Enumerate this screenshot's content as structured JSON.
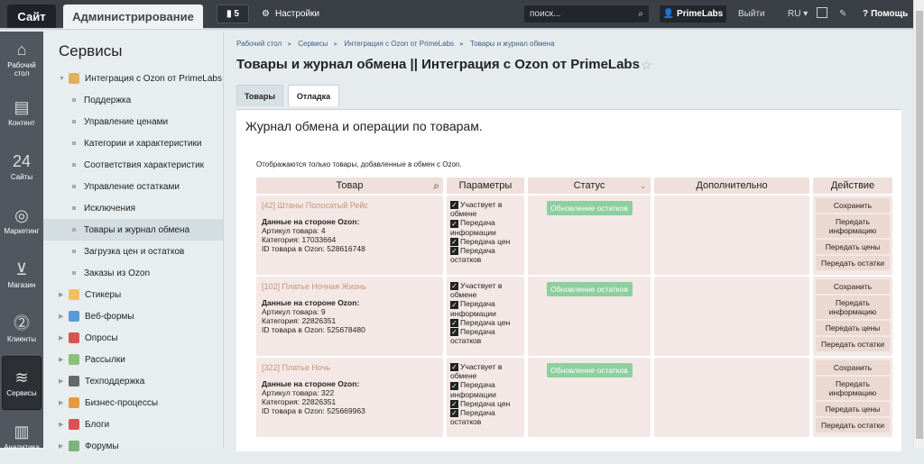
{
  "topbar": {
    "site": "Сайт",
    "admin": "Администрирование",
    "notifications": "5",
    "settings": "Настройки",
    "search_placeholder": "поиск...",
    "user": "PrimeLabs",
    "logout": "Выйти",
    "lang": "RU",
    "help": "Помощь"
  },
  "iconbar": [
    {
      "label": "Рабочий стол",
      "icon": "home-icon",
      "g": "⌂"
    },
    {
      "label": "Контент",
      "icon": "document-icon",
      "g": "▤"
    },
    {
      "label": "Сайты",
      "icon": "calendar-icon",
      "g": "24"
    },
    {
      "label": "Маркетинг",
      "icon": "target-icon",
      "g": "◎"
    },
    {
      "label": "Магазин",
      "icon": "basket-icon",
      "g": "⊻"
    },
    {
      "label": "Клиенты",
      "icon": "clients-icon",
      "g": "⓶"
    },
    {
      "label": "Сервисы",
      "icon": "layers-icon",
      "g": "≋",
      "active": true
    },
    {
      "label": "Аналитика",
      "icon": "chart-icon",
      "g": "▥"
    }
  ],
  "sidebar": {
    "title": "Сервисы",
    "items": [
      {
        "label": "Интеграция с Ozon от PrimeLabs",
        "type": "top",
        "open": true,
        "color": "#e0b060"
      },
      {
        "label": "Поддержка",
        "type": "sub"
      },
      {
        "label": "Управление ценами",
        "type": "sub"
      },
      {
        "label": "Категории и характеристики",
        "type": "sub"
      },
      {
        "label": "Соответствия характеристик",
        "type": "sub"
      },
      {
        "label": "Управление остатками",
        "type": "sub"
      },
      {
        "label": "Исключения",
        "type": "sub"
      },
      {
        "label": "Товары и журнал обмена",
        "type": "sub",
        "selected": true
      },
      {
        "label": "Загрузка цен и остатков",
        "type": "sub"
      },
      {
        "label": "Заказы из Ozon",
        "type": "sub"
      },
      {
        "label": "Стикеры",
        "type": "top",
        "color": "#f0c060"
      },
      {
        "label": "Веб-формы",
        "type": "top",
        "color": "#5b9bd5"
      },
      {
        "label": "Опросы",
        "type": "top",
        "color": "#d9534f"
      },
      {
        "label": "Рассылки",
        "type": "top",
        "color": "#8bc07a"
      },
      {
        "label": "Техподдержка",
        "type": "top",
        "color": "#666"
      },
      {
        "label": "Бизнес-процессы",
        "type": "top",
        "color": "#e89a3c"
      },
      {
        "label": "Блоги",
        "type": "top",
        "color": "#d9534f"
      },
      {
        "label": "Форумы",
        "type": "top",
        "color": "#7bb37b"
      }
    ]
  },
  "breadcrumbs": [
    "Рабочий стол",
    "Сервисы",
    "Интеграция с Ozon от PrimeLabs",
    "Товары и журнал обмена"
  ],
  "page": {
    "title": "Товары и журнал обмена || Интеграция с Ozon от PrimeLabs",
    "tabs": [
      "Товары",
      "Отладка"
    ],
    "heading": "Журнал обмена и операции по товарам.",
    "note": "Отображаются только товары, добавленные в обмен с Ozon."
  },
  "table": {
    "headers": [
      "Товар",
      "Параметры",
      "Статус",
      "Дополнительно",
      "Действие"
    ],
    "params": [
      "Участвует в обмене",
      "Передача информации",
      "Передача цен",
      "Передача остатков"
    ],
    "actions": [
      "Сохранить",
      "Передать информацию",
      "Передать цены",
      "Передать остатки"
    ],
    "ozon_label": "Данные на стороне Ozon:",
    "rows": [
      {
        "name": "[42] Штаны Полосатый Рейс",
        "article": "Артикул товара: 4",
        "category": "Категория: 17033664",
        "ozon_id": "ID товара в Ozon: 528616748",
        "status": "Обновление остатков"
      },
      {
        "name": "[102] Платье Ночная Жизнь",
        "article": "Артикул товара: 9",
        "category": "Категория: 22826351",
        "ozon_id": "ID товара в Ozon: 525678480",
        "status": "Обновление остатков"
      },
      {
        "name": "[322] Платье Ночь",
        "article": "Артикул товара: 322",
        "category": "Категория: 22826351",
        "ozon_id": "ID товара в Ozon: 525669963",
        "status": "Обновление остатков"
      }
    ]
  }
}
